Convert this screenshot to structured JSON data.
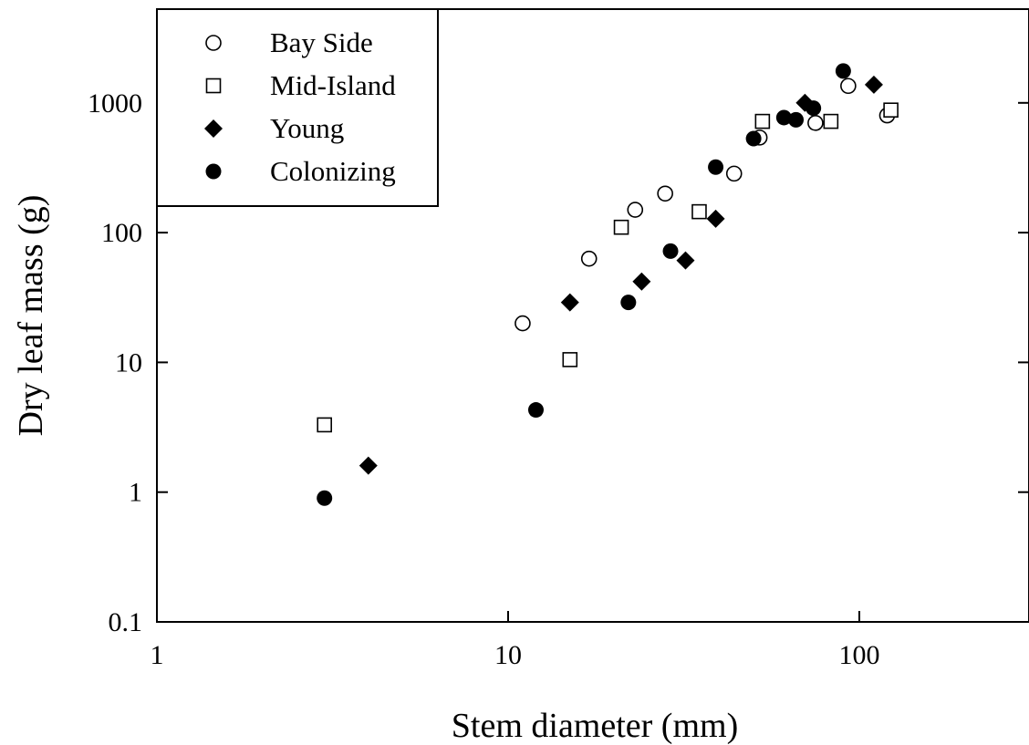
{
  "chart_data": {
    "type": "scatter",
    "xlabel": "Stem diameter (mm)",
    "ylabel": "Dry leaf mass (g)",
    "xscale": "log",
    "yscale": "log",
    "xlim": [
      1,
      300
    ],
    "ylim": [
      0.1,
      5000
    ],
    "xticks": [
      1,
      10,
      100
    ],
    "xtick_labels": [
      "1",
      "10",
      "100"
    ],
    "yticks": [
      0.1,
      1,
      10,
      100,
      1000
    ],
    "ytick_labels": [
      "0.1",
      "1",
      "10",
      "100",
      "1000"
    ],
    "grid": false,
    "legend_position": "top-left",
    "series": [
      {
        "name": "Bay Side",
        "marker": "open-circle",
        "x": [
          11,
          17,
          23,
          28,
          44,
          52,
          75,
          93,
          120
        ],
        "y": [
          20,
          63,
          150,
          200,
          285,
          540,
          700,
          1350,
          800
        ]
      },
      {
        "name": "Mid-Island",
        "marker": "open-square",
        "x": [
          3,
          15,
          21,
          35,
          53,
          83,
          123
        ],
        "y": [
          3.3,
          10.5,
          110,
          145,
          720,
          720,
          880
        ]
      },
      {
        "name": "Young",
        "marker": "filled-diamond",
        "x": [
          4,
          15,
          24,
          32,
          39,
          70,
          110
        ],
        "y": [
          1.6,
          29,
          42,
          61,
          128,
          1000,
          1380
        ]
      },
      {
        "name": "Colonizing",
        "marker": "filled-circle",
        "x": [
          3,
          12,
          22,
          29,
          39,
          50,
          61,
          66,
          74,
          90
        ],
        "y": [
          0.9,
          4.3,
          29,
          72,
          320,
          530,
          770,
          740,
          910,
          1760
        ]
      }
    ]
  }
}
